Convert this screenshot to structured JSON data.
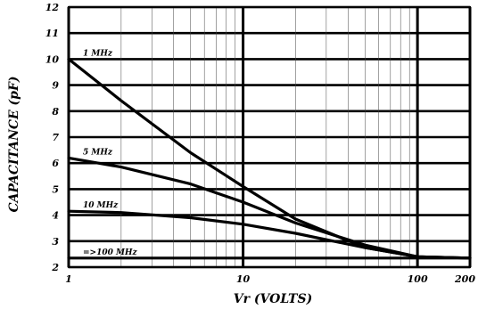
{
  "chart_data": {
    "type": "line",
    "title": "",
    "xlabel": "Vr (VOLTS)",
    "ylabel": "CAPACITANCE (pF)",
    "x_scale": "log",
    "xlim": [
      1,
      200
    ],
    "ylim": [
      2,
      12
    ],
    "x_ticks": [
      1,
      10,
      100,
      200
    ],
    "x_tick_labels": [
      "1",
      "10",
      "100",
      "200"
    ],
    "y_ticks": [
      2,
      3,
      4,
      5,
      6,
      7,
      8,
      9,
      10,
      11,
      12
    ],
    "y_tick_labels": [
      "2",
      "3",
      "4",
      "5",
      "6",
      "7",
      "8",
      "9",
      "10",
      "11",
      "12"
    ],
    "grid": true,
    "series": [
      {
        "name": "1 MHz",
        "x": [
          1,
          2,
          5,
          10,
          20,
          50,
          100,
          200
        ],
        "y": [
          10.0,
          8.4,
          6.4,
          5.1,
          3.85,
          2.75,
          2.4,
          2.35
        ]
      },
      {
        "name": "5 MHz",
        "x": [
          1,
          2,
          5,
          10,
          20,
          50,
          100,
          200
        ],
        "y": [
          6.2,
          5.85,
          5.2,
          4.5,
          3.7,
          2.85,
          2.4,
          2.35
        ]
      },
      {
        "name": "10 MHz",
        "x": [
          1,
          2,
          5,
          10,
          20,
          50,
          100,
          200
        ],
        "y": [
          4.15,
          4.1,
          3.9,
          3.65,
          3.3,
          2.75,
          2.4,
          2.35
        ]
      },
      {
        "name": "=>100 MHz",
        "x": [
          1,
          200
        ],
        "y": [
          2.35,
          2.35
        ]
      }
    ]
  }
}
